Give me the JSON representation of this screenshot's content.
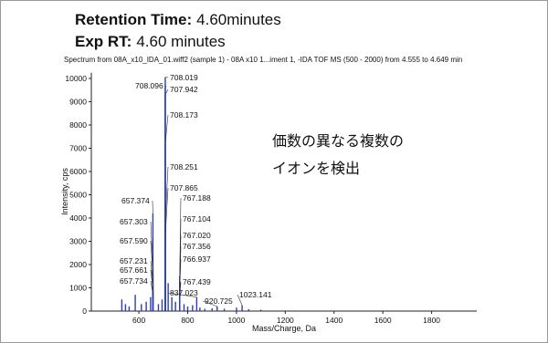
{
  "chart_data": {
    "type": "stem",
    "title_lines": [
      {
        "label": "Retention Time:",
        "value": "4.60minutes"
      },
      {
        "label": "Exp RT:",
        "value": "4.60 minutes"
      }
    ],
    "subtitle": "Spectrum from 08A_x10_IDA_01.wiff2 (sample 1) - 08A x10 1...iment 1, -IDA TOF MS (500 - 2000) from 4.555 to 4.649 min",
    "annotation": [
      "価数の異なる複数の",
      "イオンを検出"
    ],
    "x_label": "Mass/Charge, Da",
    "y_label": "Intensity, cps",
    "color": "#2b3fae",
    "x": [
      708.096,
      708.019,
      707.942,
      708.173,
      708.251,
      707.865,
      767.188,
      657.374,
      657.303,
      767.104,
      657.59,
      767.02,
      767.356,
      657.231,
      766.937,
      657.661,
      657.734,
      767.439,
      837.023,
      920.725,
      1023.141,
      530,
      545,
      560,
      585,
      610,
      630,
      648,
      680,
      695,
      720,
      735,
      750,
      785,
      800,
      820,
      850,
      870,
      900,
      950,
      1000,
      1050,
      1100
    ],
    "values": [
      9600,
      10050,
      9300,
      7200,
      3900,
      3200,
      1500,
      4200,
      1800,
      1200,
      1500,
      1000,
      900,
      1100,
      800,
      900,
      700,
      600,
      600,
      200,
      250,
      500,
      300,
      200,
      700,
      300,
      400,
      600,
      300,
      500,
      1200,
      600,
      400,
      300,
      200,
      250,
      150,
      100,
      120,
      100,
      150,
      80,
      60
    ],
    "peak_labels": [
      "708.096",
      "708.019",
      "707.942",
      "708.173",
      "708.251",
      "707.865",
      "767.188",
      "657.374",
      "657.303",
      "767.104",
      "657.590",
      "767.020",
      "767.356",
      "657.231",
      "766.937",
      "657.661",
      "657.734",
      "767.439",
      "837.023",
      "920.725",
      "1023.141",
      null,
      null,
      null,
      null,
      null,
      null,
      null,
      null,
      null,
      null,
      null,
      null,
      null,
      null,
      null,
      null,
      null,
      null,
      null,
      null,
      null,
      null
    ],
    "xlim": [
      405,
      1985
    ],
    "ylim": [
      0,
      10250
    ],
    "xticks": [
      600,
      800,
      1000,
      1200,
      1400,
      1600,
      1800
    ],
    "yticks": [
      0,
      1000,
      2000,
      3000,
      4000,
      5000,
      6000,
      7000,
      8000,
      9000,
      10000
    ]
  }
}
